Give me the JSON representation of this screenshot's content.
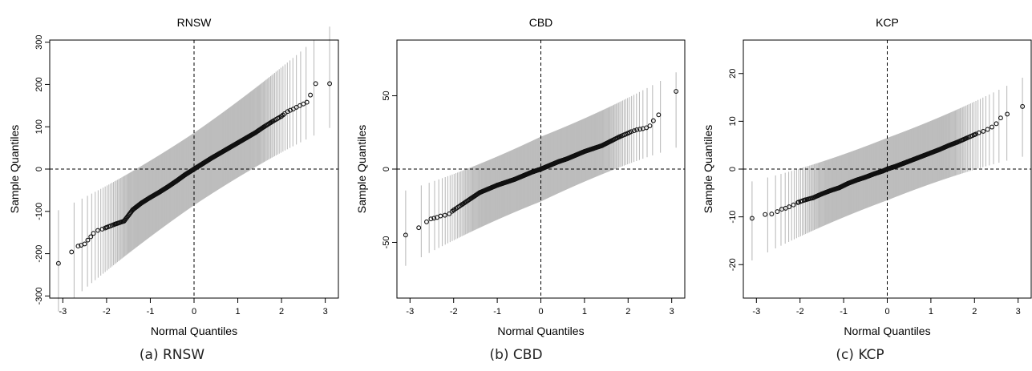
{
  "captions": [
    "(a) RNSW",
    "(b) CBD",
    "(c) KCP"
  ],
  "colors": {
    "band": "#bdbdbd",
    "points": "#111111",
    "frame": "#000000",
    "refline": "#000000"
  },
  "chart_data": [
    {
      "type": "scatter",
      "title": "RNSW",
      "xlabel": "Normal Quantiles",
      "ylabel": "Sample Quantiles",
      "xlim": [
        -3.3,
        3.3
      ],
      "ylim": [
        -305,
        305
      ],
      "xticks": [
        -3,
        -2,
        -1,
        0,
        1,
        2,
        3
      ],
      "yticks": [
        -300,
        -200,
        -100,
        0,
        100,
        200,
        300
      ],
      "grid": false,
      "reference_lines": {
        "x": 0,
        "y": 0,
        "style": "dashed"
      },
      "series": [
        {
          "type": "qq_points_with_envelope",
          "n_points": 400,
          "x_range": [
            -3.1,
            3.1
          ],
          "slope": 70,
          "intercept": 0,
          "envelope_halfwidth_center": 85,
          "envelope_halfwidth_tail": 90,
          "points": [
            [
              -3.1,
              -223
            ],
            [
              -2.8,
              -196
            ],
            [
              -2.65,
              -182
            ],
            [
              -2.58,
              -180
            ],
            [
              -2.5,
              -177
            ],
            [
              -2.43,
              -168
            ],
            [
              -2.36,
              -160
            ],
            [
              -2.3,
              -152
            ],
            [
              -2.2,
              -145
            ],
            [
              -2.1,
              -142
            ],
            [
              -2.0,
              -138
            ],
            [
              -1.8,
              -130
            ],
            [
              -1.6,
              -123
            ],
            [
              -1.4,
              -96
            ],
            [
              -1.2,
              -80
            ],
            [
              -1.0,
              -67
            ],
            [
              -0.8,
              -55
            ],
            [
              -0.6,
              -42
            ],
            [
              -0.4,
              -28
            ],
            [
              -0.2,
              -13
            ],
            [
              0.0,
              0
            ],
            [
              0.2,
              13
            ],
            [
              0.4,
              26
            ],
            [
              0.6,
              38
            ],
            [
              0.8,
              50
            ],
            [
              1.0,
              62
            ],
            [
              1.2,
              74
            ],
            [
              1.4,
              86
            ],
            [
              1.6,
              100
            ],
            [
              1.8,
              113
            ],
            [
              2.0,
              125
            ],
            [
              2.07,
              131
            ],
            [
              2.14,
              136
            ],
            [
              2.2,
              139
            ],
            [
              2.27,
              142
            ],
            [
              2.34,
              146
            ],
            [
              2.42,
              150
            ],
            [
              2.5,
              154
            ],
            [
              2.58,
              158
            ],
            [
              2.66,
              175
            ],
            [
              2.78,
              202
            ],
            [
              3.1,
              202
            ]
          ]
        }
      ]
    },
    {
      "type": "scatter",
      "title": "CBD",
      "xlabel": "Normal Quantiles",
      "ylabel": "Sample Quantiles",
      "xlim": [
        -3.3,
        3.3
      ],
      "ylim": [
        -88,
        88
      ],
      "xticks": [
        -3,
        -2,
        -1,
        0,
        1,
        2,
        3
      ],
      "yticks": [
        -50,
        0,
        50
      ],
      "grid": false,
      "reference_lines": {
        "x": 0,
        "y": 0,
        "style": "dashed"
      },
      "series": [
        {
          "type": "qq_points_with_envelope",
          "n_points": 400,
          "x_range": [
            -3.1,
            3.1
          ],
          "slope": 13,
          "intercept": 0,
          "envelope_halfwidth_center": 22,
          "envelope_halfwidth_tail": 18,
          "points": [
            [
              -3.1,
              -45
            ],
            [
              -2.8,
              -40
            ],
            [
              -2.62,
              -36
            ],
            [
              -2.52,
              -34
            ],
            [
              -2.45,
              -33.5
            ],
            [
              -2.38,
              -33
            ],
            [
              -2.3,
              -32
            ],
            [
              -2.2,
              -31.5
            ],
            [
              -2.1,
              -30.5
            ],
            [
              -2.0,
              -28
            ],
            [
              -1.8,
              -24
            ],
            [
              -1.6,
              -20
            ],
            [
              -1.4,
              -16
            ],
            [
              -1.2,
              -13.5
            ],
            [
              -1.0,
              -11
            ],
            [
              -0.8,
              -9
            ],
            [
              -0.6,
              -7
            ],
            [
              -0.4,
              -4.5
            ],
            [
              -0.2,
              -2
            ],
            [
              0.0,
              0
            ],
            [
              0.2,
              2.5
            ],
            [
              0.4,
              5
            ],
            [
              0.6,
              7
            ],
            [
              0.8,
              9.5
            ],
            [
              1.0,
              12
            ],
            [
              1.2,
              14
            ],
            [
              1.4,
              16
            ],
            [
              1.6,
              19
            ],
            [
              1.8,
              22
            ],
            [
              2.0,
              24.5
            ],
            [
              2.07,
              25.5
            ],
            [
              2.14,
              26.2
            ],
            [
              2.2,
              26.8
            ],
            [
              2.27,
              27.2
            ],
            [
              2.34,
              27.6
            ],
            [
              2.42,
              28.2
            ],
            [
              2.5,
              29.5
            ],
            [
              2.58,
              33
            ],
            [
              2.7,
              37
            ],
            [
              3.1,
              53
            ]
          ]
        }
      ]
    },
    {
      "type": "scatter",
      "title": "KCP",
      "xlabel": "Normal Quantiles",
      "ylabel": "Sample Quantiles",
      "xlim": [
        -3.3,
        3.3
      ],
      "ylim": [
        -27,
        27
      ],
      "xticks": [
        -3,
        -2,
        -1,
        0,
        1,
        2,
        3
      ],
      "yticks": [
        -20,
        -10,
        0,
        10,
        20
      ],
      "grid": false,
      "reference_lines": {
        "x": 0,
        "y": 0,
        "style": "dashed"
      },
      "series": [
        {
          "type": "qq_points_with_envelope",
          "n_points": 400,
          "x_range": [
            -3.1,
            3.1
          ],
          "slope": 3.5,
          "intercept": 0,
          "envelope_halfwidth_center": 6.5,
          "envelope_halfwidth_tail": 6,
          "points": [
            [
              -3.1,
              -10.3
            ],
            [
              -2.8,
              -9.5
            ],
            [
              -2.65,
              -9.4
            ],
            [
              -2.52,
              -8.9
            ],
            [
              -2.42,
              -8.4
            ],
            [
              -2.33,
              -8.2
            ],
            [
              -2.25,
              -7.9
            ],
            [
              -2.15,
              -7.5
            ],
            [
              -2.05,
              -7.0
            ],
            [
              -1.9,
              -6.5
            ],
            [
              -1.7,
              -6.0
            ],
            [
              -1.5,
              -5.2
            ],
            [
              -1.3,
              -4.5
            ],
            [
              -1.1,
              -3.9
            ],
            [
              -0.9,
              -3.0
            ],
            [
              -0.7,
              -2.3
            ],
            [
              -0.5,
              -1.7
            ],
            [
              -0.3,
              -1.0
            ],
            [
              -0.1,
              -0.4
            ],
            [
              0.0,
              0
            ],
            [
              0.2,
              0.6
            ],
            [
              0.4,
              1.3
            ],
            [
              0.6,
              2.0
            ],
            [
              0.8,
              2.7
            ],
            [
              1.0,
              3.4
            ],
            [
              1.2,
              4.1
            ],
            [
              1.4,
              4.9
            ],
            [
              1.6,
              5.6
            ],
            [
              1.8,
              6.4
            ],
            [
              2.0,
              7.2
            ],
            [
              2.1,
              7.6
            ],
            [
              2.2,
              7.9
            ],
            [
              2.3,
              8.3
            ],
            [
              2.4,
              8.8
            ],
            [
              2.5,
              9.5
            ],
            [
              2.6,
              10.7
            ],
            [
              2.75,
              11.5
            ],
            [
              3.1,
              13.1
            ]
          ]
        }
      ]
    }
  ]
}
